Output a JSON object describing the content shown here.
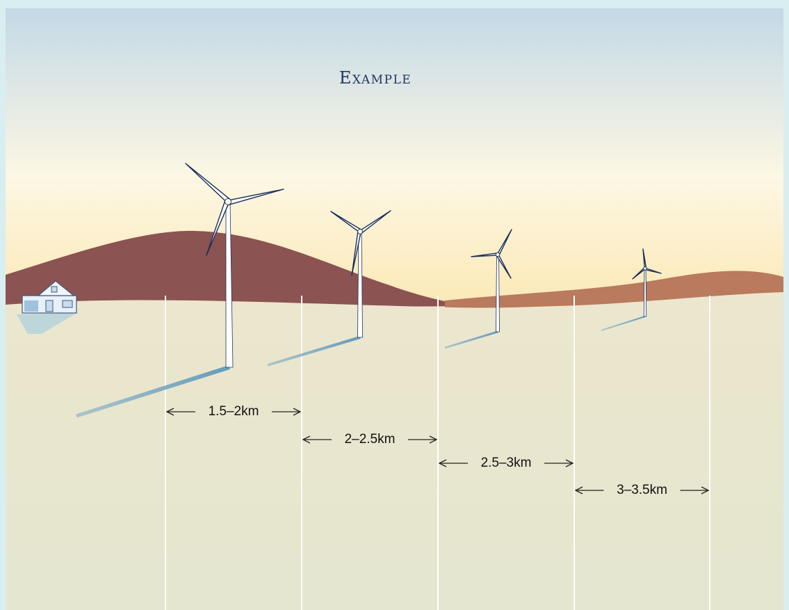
{
  "title": "Example",
  "distances": [
    "1.5–2km",
    "2–2.5km",
    "2.5–3km",
    "3–3.5km"
  ]
}
